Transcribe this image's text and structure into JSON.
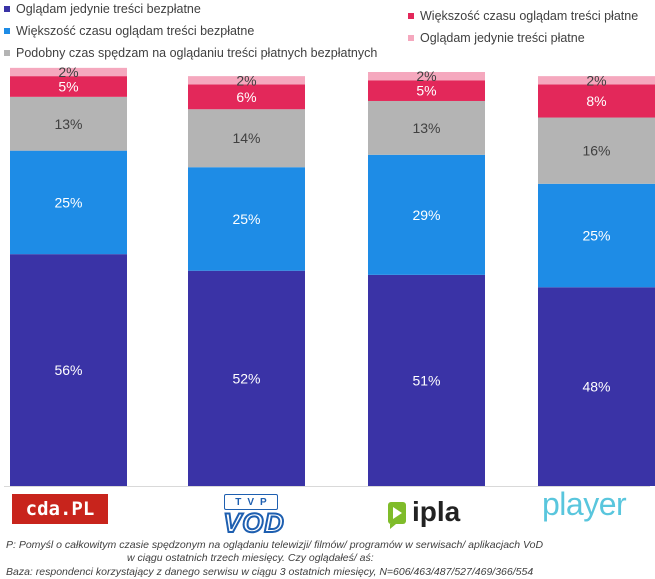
{
  "chart_data": {
    "type": "bar",
    "stacked": true,
    "categories": [
      "cda.pl",
      "TVP VOD",
      "ipla",
      "player"
    ],
    "series": [
      {
        "name": "Oglądam jedynie treści bezpłatne",
        "color": "#3a33a6",
        "values": [
          56,
          52,
          51,
          48
        ],
        "labels": [
          "56%",
          "52%",
          "51%",
          "48%"
        ]
      },
      {
        "name": "Większość czasu oglądam treści bezpłatne",
        "color": "#1e8ce6",
        "values": [
          25,
          25,
          29,
          25
        ],
        "labels": [
          "25%",
          "25%",
          "29%",
          "25%"
        ]
      },
      {
        "name": "Podobny czas spędzam na oglądaniu treści płatnych bezpłatnych",
        "color": "#b4b4b4",
        "values": [
          13,
          14,
          13,
          16
        ],
        "labels": [
          "13%",
          "14%",
          "13%",
          "16%"
        ]
      },
      {
        "name": "Większość czasu oglądam treści płatne",
        "color": "#e3285a",
        "values": [
          5,
          6,
          5,
          8
        ],
        "labels": [
          "5%",
          "6%",
          "5%",
          "8%"
        ]
      },
      {
        "name": "Oglądam jedynie treści płatne",
        "color": "#f5a8be",
        "values": [
          2,
          2,
          2,
          2
        ],
        "labels": [
          "2%",
          "2%",
          "2%",
          "2%"
        ]
      }
    ],
    "ylim": [
      0,
      100
    ],
    "legend": "top"
  },
  "logos": {
    "cda": "cda.PL",
    "tvp_top": "TVP",
    "tvp_bottom": "VOD",
    "ipla": "ipla",
    "player": "player"
  },
  "footnote": {
    "line1": "P: Pomyśl o całkowitym czasie spędzonym na oglądaniu telewizji/ filmów/ programów w serwisach/ aplikacjach VoD",
    "line2": "w ciągu ostatnich trzech miesięcy. Czy oglądałeś/ aś:",
    "line3": "Baza: respondenci korzystający z danego serwisu w ciągu 3 ostatnich miesięcy, N=606/463/487/527/469/366/554"
  }
}
